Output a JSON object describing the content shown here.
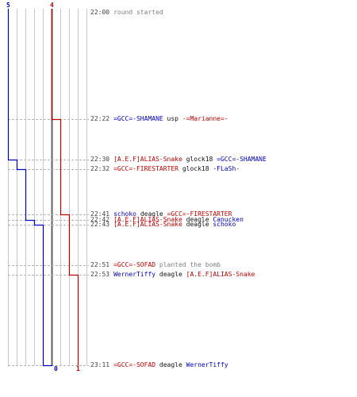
{
  "colors": {
    "team_blue": "#0000c0",
    "team_red": "#c00000",
    "grid": "#c8c8c8",
    "dash": "#b4b4b4",
    "center_line": "#606060",
    "time": "#404040",
    "neutral": "#7f7f7f"
  },
  "timeline": {
    "start_counts": {
      "blue": "5",
      "red": "4"
    },
    "end_counts": {
      "blue": "0",
      "red": "1"
    },
    "events": [
      {
        "time": "22:00",
        "type": "info",
        "text": "round started",
        "blue": 5,
        "red": 4
      },
      {
        "time": "22:22",
        "type": "kill",
        "killer": "=GCC=-SHAMANE",
        "killer_team": "blue",
        "weapon": "usp",
        "victim": "-=Marianne=-",
        "victim_team": "red",
        "blue": 5,
        "red": 3
      },
      {
        "time": "22:30",
        "type": "kill",
        "killer": "[A.E.F]ALIAS-Snake",
        "killer_team": "red",
        "weapon": "glock18",
        "victim": "=GCC=-SHAMANE",
        "victim_team": "blue",
        "blue": 4,
        "red": 3
      },
      {
        "time": "22:32",
        "type": "kill",
        "killer": "=GCC=-FIRESTARTER",
        "killer_team": "red",
        "weapon": "glock18",
        "victim": "-FLaSh-",
        "victim_team": "blue",
        "blue": 3,
        "red": 3
      },
      {
        "time": "22:41",
        "type": "kill",
        "killer": "schoko",
        "killer_team": "blue",
        "weapon": "deagle",
        "victim": "=GCC=-FIRESTARTER",
        "victim_team": "red",
        "blue": 3,
        "red": 2
      },
      {
        "time": "22:42",
        "type": "kill",
        "killer": "[A.E.F]ALIAS-Snake",
        "killer_team": "red",
        "weapon": "deagle",
        "victim": "Canucken",
        "victim_team": "blue",
        "blue": 2,
        "red": 2
      },
      {
        "time": "22:43",
        "type": "kill",
        "killer": "[A.E.F]ALIAS-Snake",
        "killer_team": "red",
        "weapon": "deagle",
        "victim": "schoko",
        "victim_team": "blue",
        "blue": 1,
        "red": 2
      },
      {
        "time": "22:51",
        "type": "bomb",
        "actor": "=GCC=-SOFAD",
        "actor_team": "red",
        "text": "planted the bomb",
        "blue": 1,
        "red": 2
      },
      {
        "time": "22:53",
        "type": "kill",
        "killer": "WernerTiffy",
        "killer_team": "blue",
        "weapon": "deagle",
        "victim": "[A.E.F]ALIAS-Snake",
        "victim_team": "red",
        "blue": 1,
        "red": 1
      },
      {
        "time": "23:11",
        "type": "kill",
        "killer": "=GCC=-SOFAD",
        "killer_team": "red",
        "weapon": "deagle",
        "victim": "WernerTiffy",
        "victim_team": "blue",
        "blue": 0,
        "red": 1
      }
    ]
  }
}
